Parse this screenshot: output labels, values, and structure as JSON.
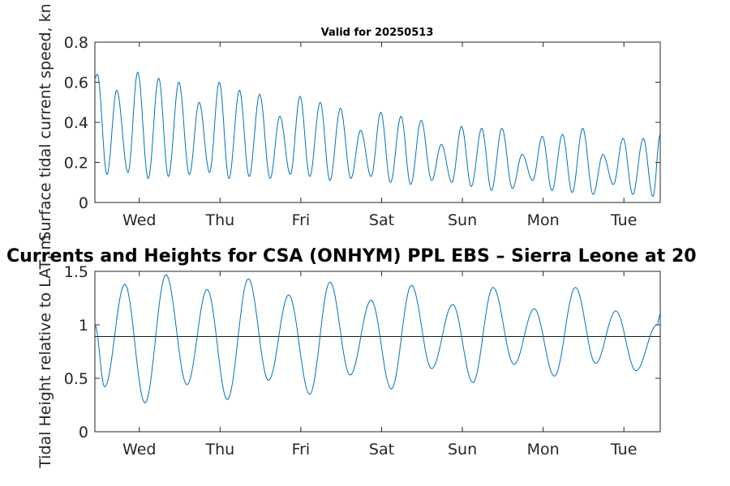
{
  "colors": {
    "series": "#0072BD",
    "mean_line": "#1a1a1a",
    "axis": "#262626"
  },
  "chart_data": [
    {
      "type": "line",
      "title": "Valid for 20250513",
      "xlabel": "",
      "ylabel": "Surface tidal current speed, kn",
      "xlim": [
        0,
        7
      ],
      "ylim": [
        0,
        0.8
      ],
      "xtick_labels": [
        {
          "x": 0.55,
          "label": "Wed"
        },
        {
          "x": 1.55,
          "label": "Thu"
        },
        {
          "x": 2.55,
          "label": "Fri"
        },
        {
          "x": 3.55,
          "label": "Sat"
        },
        {
          "x": 4.55,
          "label": "Sun"
        },
        {
          "x": 5.55,
          "label": "Mon"
        },
        {
          "x": 6.55,
          "label": "Tue"
        }
      ],
      "yticks": [
        0,
        0.2,
        0.4,
        0.6,
        0.8
      ],
      "ytick_labels": [
        "0",
        "0.2",
        "0.4",
        "0.6",
        "0.8"
      ],
      "series": [
        {
          "x": [
            0.0,
            0.03,
            0.15,
            0.27,
            0.41,
            0.53,
            0.66,
            0.79,
            0.91,
            1.04,
            1.17,
            1.29,
            1.42,
            1.54,
            1.66,
            1.79,
            1.91,
            2.04,
            2.17,
            2.29,
            2.42,
            2.54,
            2.66,
            2.79,
            2.91,
            3.04,
            3.17,
            3.29,
            3.42,
            3.54,
            3.66,
            3.79,
            3.91,
            4.04,
            4.17,
            4.29,
            4.42,
            4.54,
            4.66,
            4.79,
            4.91,
            5.04,
            5.17,
            5.29,
            5.42,
            5.54,
            5.66,
            5.79,
            5.91,
            6.04,
            6.17,
            6.29,
            6.42,
            6.54,
            6.66,
            6.79,
            6.91,
            7.0
          ],
          "y": [
            0.62,
            0.64,
            0.14,
            0.56,
            0.15,
            0.65,
            0.12,
            0.62,
            0.13,
            0.6,
            0.14,
            0.5,
            0.15,
            0.6,
            0.12,
            0.56,
            0.13,
            0.54,
            0.12,
            0.43,
            0.14,
            0.53,
            0.13,
            0.5,
            0.11,
            0.47,
            0.12,
            0.36,
            0.13,
            0.45,
            0.1,
            0.43,
            0.09,
            0.41,
            0.11,
            0.29,
            0.1,
            0.38,
            0.08,
            0.37,
            0.06,
            0.37,
            0.07,
            0.24,
            0.11,
            0.33,
            0.06,
            0.34,
            0.05,
            0.37,
            0.04,
            0.24,
            0.09,
            0.32,
            0.04,
            0.32,
            0.03,
            0.34
          ]
        }
      ]
    },
    {
      "type": "line",
      "title": "Currents and Heights for CSA (ONHYM) PPL EBS  – Sierra Leone at 20",
      "xlabel": "",
      "ylabel": "Tidal Height relative to LAT, m",
      "xlim": [
        0,
        7
      ],
      "ylim": [
        0,
        1.5
      ],
      "xtick_labels": [
        {
          "x": 0.55,
          "label": "Wed"
        },
        {
          "x": 1.55,
          "label": "Thu"
        },
        {
          "x": 2.55,
          "label": "Fri"
        },
        {
          "x": 3.55,
          "label": "Sat"
        },
        {
          "x": 4.55,
          "label": "Sun"
        },
        {
          "x": 5.55,
          "label": "Mon"
        },
        {
          "x": 6.55,
          "label": "Tue"
        }
      ],
      "yticks": [
        0,
        0.5,
        1,
        1.5
      ],
      "ytick_labels": [
        "0",
        "0.5",
        "1",
        "1.5"
      ],
      "reference_line": 0.89,
      "series": [
        {
          "x": [
            0.0,
            0.12,
            0.37,
            0.62,
            0.88,
            1.14,
            1.39,
            1.64,
            1.9,
            2.15,
            2.4,
            2.66,
            2.91,
            3.16,
            3.42,
            3.67,
            3.92,
            4.17,
            4.43,
            4.68,
            4.93,
            5.19,
            5.44,
            5.69,
            5.95,
            6.2,
            6.45,
            6.7,
            6.96,
            7.0
          ],
          "y": [
            1.0,
            0.42,
            1.38,
            0.27,
            1.47,
            0.44,
            1.33,
            0.3,
            1.43,
            0.48,
            1.28,
            0.35,
            1.4,
            0.53,
            1.23,
            0.4,
            1.37,
            0.59,
            1.19,
            0.46,
            1.35,
            0.63,
            1.15,
            0.52,
            1.35,
            0.64,
            1.13,
            0.57,
            1.0,
            1.1
          ]
        }
      ]
    }
  ]
}
